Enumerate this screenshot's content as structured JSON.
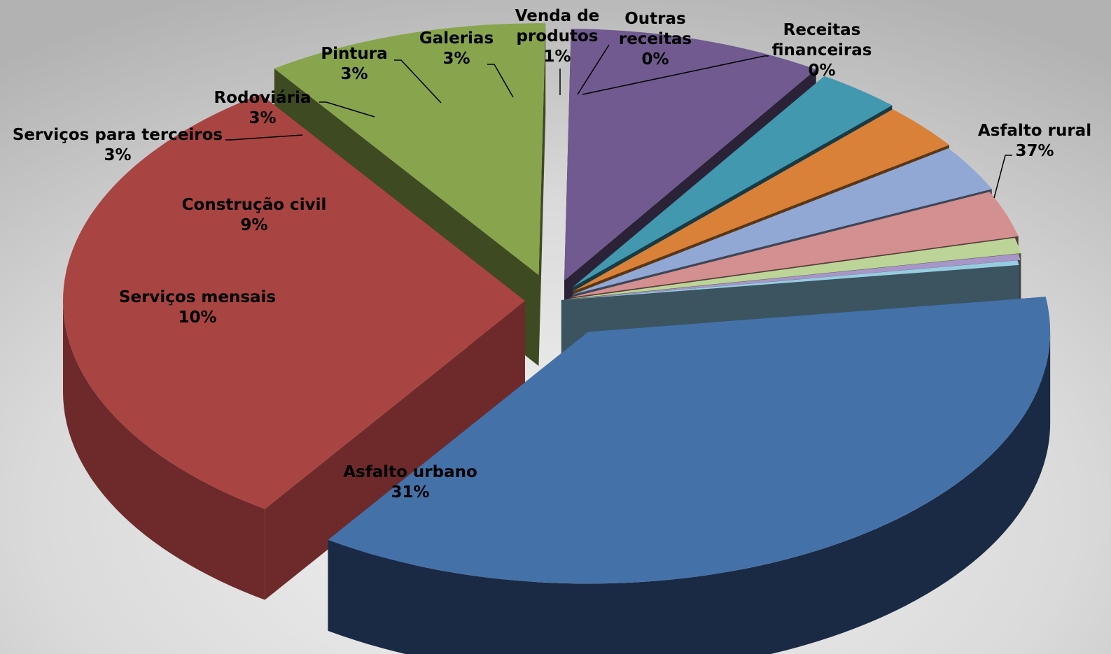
{
  "chart_data": {
    "type": "pie",
    "style": "3d-exploded",
    "legend": "none",
    "slices": [
      {
        "label": "Asfalto rural",
        "pct_label": "37%",
        "value": 37,
        "color": "#4472A8",
        "side": "#1B2A44"
      },
      {
        "label": "Asfalto urbano",
        "pct_label": "31%",
        "value": 31,
        "color": "#A84442",
        "side": "#6E2A2A"
      },
      {
        "label": "Serviços mensais",
        "pct_label": "10%",
        "value": 10,
        "color": "#88A44C",
        "side": "#3E4A22"
      },
      {
        "label": "Construção civil",
        "pct_label": "9%",
        "value": 9,
        "color": "#705A90",
        "side": "#2C2238"
      },
      {
        "label": "Serviços para terceiros",
        "pct_label": "3%",
        "value": 3,
        "color": "#4298AE",
        "side": "#183A44"
      },
      {
        "label": "Rodoviária",
        "pct_label": "3%",
        "value": 3,
        "color": "#D98138",
        "side": "#5A3614"
      },
      {
        "label": "Pintura",
        "pct_label": "3%",
        "value": 3,
        "color": "#92A8D4",
        "side": "#3C4658"
      },
      {
        "label": "Galerias",
        "pct_label": "3%",
        "value": 3,
        "color": "#D49090",
        "side": "#583C3C"
      },
      {
        "label": "Venda de produtos",
        "pct_label": "1%",
        "value": 1,
        "color": "#BCD498",
        "side": "#4C5A3C"
      },
      {
        "label": "Outras receitas",
        "pct_label": "0%",
        "value": 0.4,
        "color": "#A896C8",
        "side": "#443C54"
      },
      {
        "label": "Receitas financeiras",
        "pct_label": "0%",
        "value": 0.3,
        "color": "#98CCE0",
        "side": "#3C5460"
      }
    ]
  }
}
